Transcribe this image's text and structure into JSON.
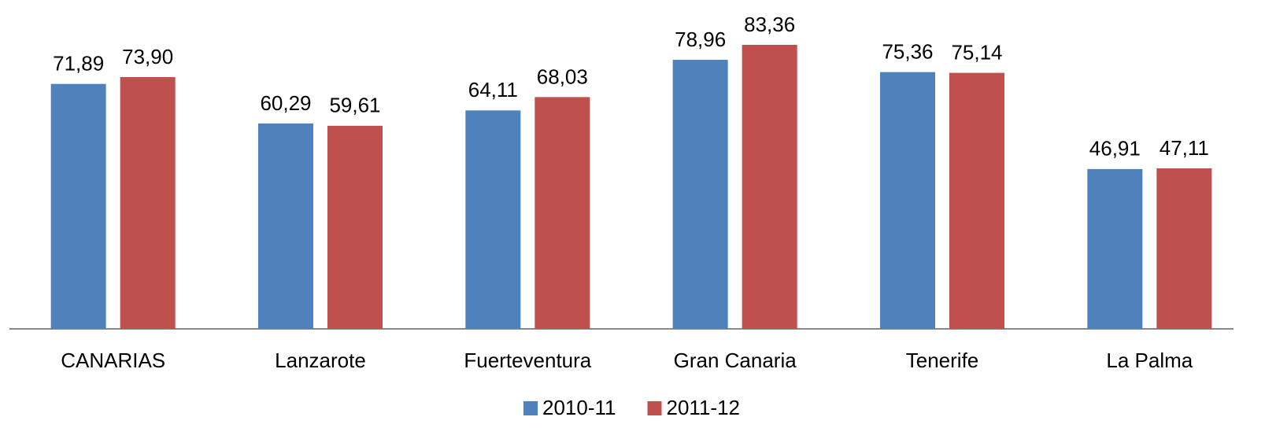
{
  "chart_data": {
    "type": "bar",
    "categories": [
      "CANARIAS",
      "Lanzarote",
      "Fuerteventura",
      "Gran Canaria",
      "Tenerife",
      "La Palma"
    ],
    "series": [
      {
        "name": "2010-11",
        "color": "#4f81bd",
        "values": [
          71.89,
          60.29,
          64.11,
          78.96,
          75.36,
          46.91
        ],
        "value_labels": [
          "71,89",
          "60,29",
          "64,11",
          "78,96",
          "75,36",
          "46,91"
        ]
      },
      {
        "name": "2011-12",
        "color": "#c0504d",
        "values": [
          73.9,
          59.61,
          68.03,
          83.36,
          75.14,
          47.11
        ],
        "value_labels": [
          "73,90",
          "59,61",
          "68,03",
          "83,36",
          "75,14",
          "47,11"
        ]
      }
    ],
    "legend": "bottom"
  }
}
